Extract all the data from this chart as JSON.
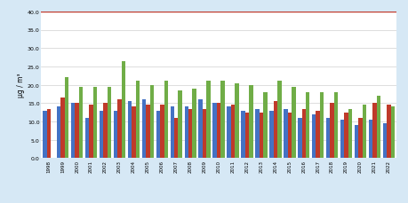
{
  "years": [
    1998,
    1999,
    2000,
    2001,
    2002,
    2003,
    2004,
    2005,
    2006,
    2007,
    2008,
    2009,
    2010,
    2011,
    2012,
    2013,
    2014,
    2015,
    2016,
    2017,
    2018,
    2019,
    2020,
    2021,
    2022
  ],
  "blue": [
    13.0,
    14.0,
    15.0,
    11.0,
    13.0,
    13.0,
    15.5,
    16.0,
    13.0,
    14.0,
    14.0,
    16.0,
    15.0,
    14.0,
    13.0,
    13.5,
    13.0,
    13.5,
    11.0,
    12.0,
    11.0,
    10.5,
    9.0,
    10.5,
    9.5
  ],
  "red": [
    13.5,
    16.5,
    15.0,
    14.5,
    15.0,
    16.0,
    14.0,
    14.5,
    14.5,
    11.0,
    13.5,
    13.5,
    15.0,
    14.5,
    12.5,
    12.5,
    15.5,
    12.5,
    13.5,
    13.0,
    15.0,
    12.5,
    11.0,
    15.0,
    14.5
  ],
  "green": [
    0,
    22.0,
    19.5,
    19.5,
    19.5,
    26.5,
    21.0,
    20.0,
    21.0,
    18.5,
    19.0,
    21.0,
    21.0,
    20.5,
    20.0,
    18.0,
    21.0,
    19.5,
    18.0,
    18.0,
    18.0,
    13.5,
    14.5,
    17.0,
    14.0
  ],
  "blue_color": "#4472c4",
  "red_color": "#bf3a2a",
  "green_color": "#70ad47",
  "hline_color": "#c0392b",
  "hline_y": 40.0,
  "ylim": [
    0,
    40
  ],
  "yticks": [
    0.0,
    5.0,
    10.0,
    15.0,
    20.0,
    25.0,
    30.0,
    35.0,
    40.0
  ],
  "ylabel": "µg / m³",
  "background": "#d6e8f5",
  "plot_background": "#ffffff",
  "grid_color": "#d0d0d0"
}
